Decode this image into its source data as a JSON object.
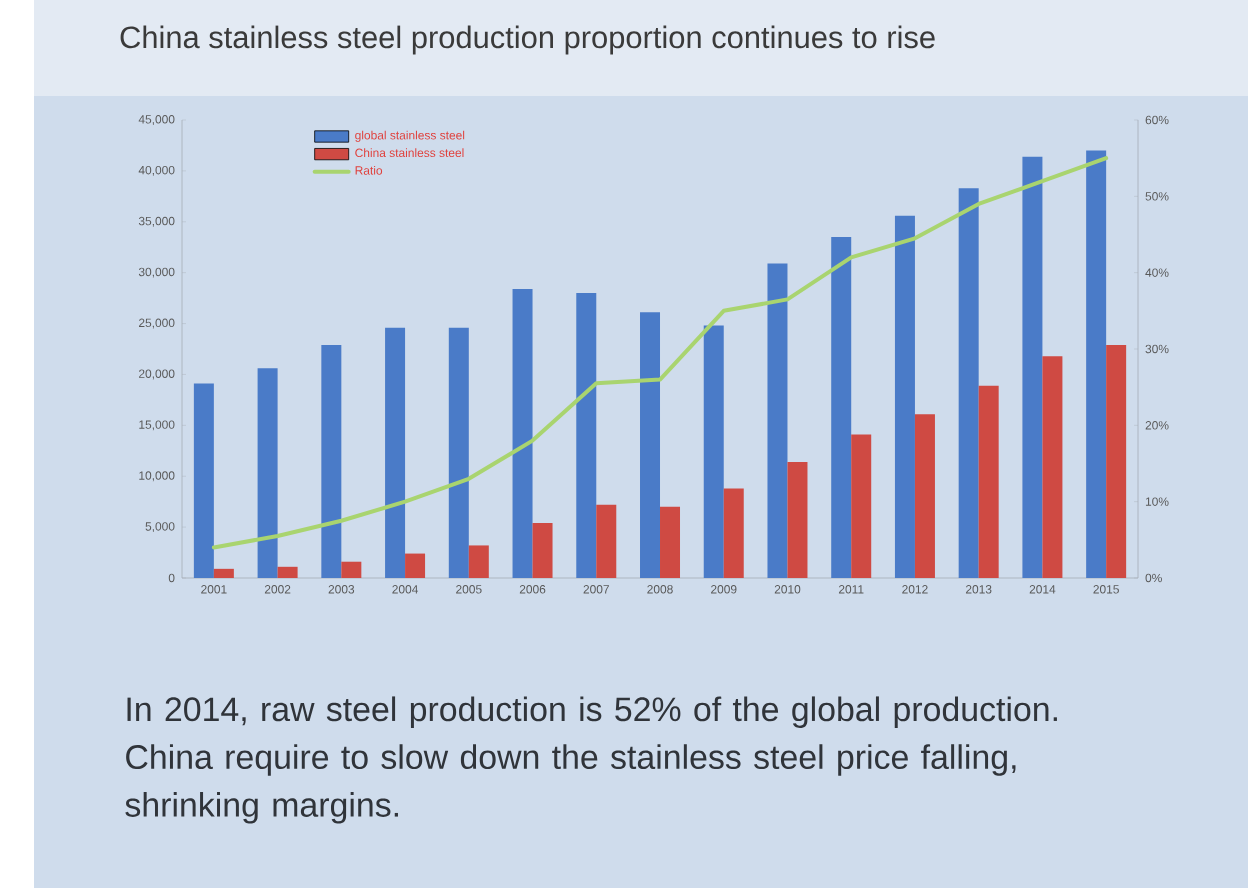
{
  "chart_data": {
    "type": "bar",
    "title": "China stainless steel production proportion continues to rise",
    "categories": [
      "2001",
      "2002",
      "2003",
      "2004",
      "2005",
      "2006",
      "2007",
      "2008",
      "2009",
      "2010",
      "2011",
      "2012",
      "2013",
      "2014",
      "2015"
    ],
    "series": [
      {
        "name": "global stainless steel",
        "color": "#4a7bc8",
        "values": [
          19100,
          20600,
          22900,
          24600,
          24600,
          28400,
          28000,
          26100,
          24800,
          30900,
          33500,
          35600,
          38300,
          41400,
          42000
        ]
      },
      {
        "name": "China stainless steel",
        "color": "#cf4a43",
        "values": [
          900,
          1100,
          1600,
          2400,
          3200,
          5400,
          7200,
          7000,
          8800,
          11400,
          14100,
          16100,
          18900,
          21800,
          22900
        ]
      },
      {
        "name": "Ratio",
        "type": "line",
        "axis": "y2",
        "color": "#a9d46f",
        "values": [
          4,
          5.5,
          7.5,
          10,
          13,
          18,
          25.5,
          26,
          35,
          36.5,
          42,
          44.5,
          49,
          52,
          55
        ]
      }
    ],
    "ylim": [
      0,
      45000
    ],
    "yticks": [
      0,
      {
        "value": 5000,
        "label": "5,000"
      },
      {
        "value": 10000,
        "label": "10,000"
      },
      {
        "value": 15000,
        "label": "15,000"
      },
      {
        "value": 20000,
        "label": "20,000"
      },
      {
        "value": 25000,
        "label": "25,000"
      },
      {
        "value": 30000,
        "label": "30,000"
      },
      {
        "value": 35000,
        "label": "35,000"
      },
      {
        "value": 40000,
        "label": "40,000"
      },
      {
        "value": 45000,
        "label": "45,000"
      }
    ],
    "y2lim": [
      0,
      60
    ],
    "y2ticks": [
      {
        "value": 0,
        "label": "0%"
      },
      {
        "value": 10,
        "label": "10%"
      },
      {
        "value": 20,
        "label": "20%"
      },
      {
        "value": 30,
        "label": "30%"
      },
      {
        "value": 40,
        "label": "40%"
      },
      {
        "value": 50,
        "label": "50%"
      },
      {
        "value": 60,
        "label": "60%"
      }
    ],
    "legend": "top left",
    "grid": false,
    "marker": "none",
    "line_style": "solid",
    "annotations": [
      "In 2014, raw steel production is 52% of the global production. China require to slow down the stainless steel price falling, shrinking margins."
    ]
  }
}
